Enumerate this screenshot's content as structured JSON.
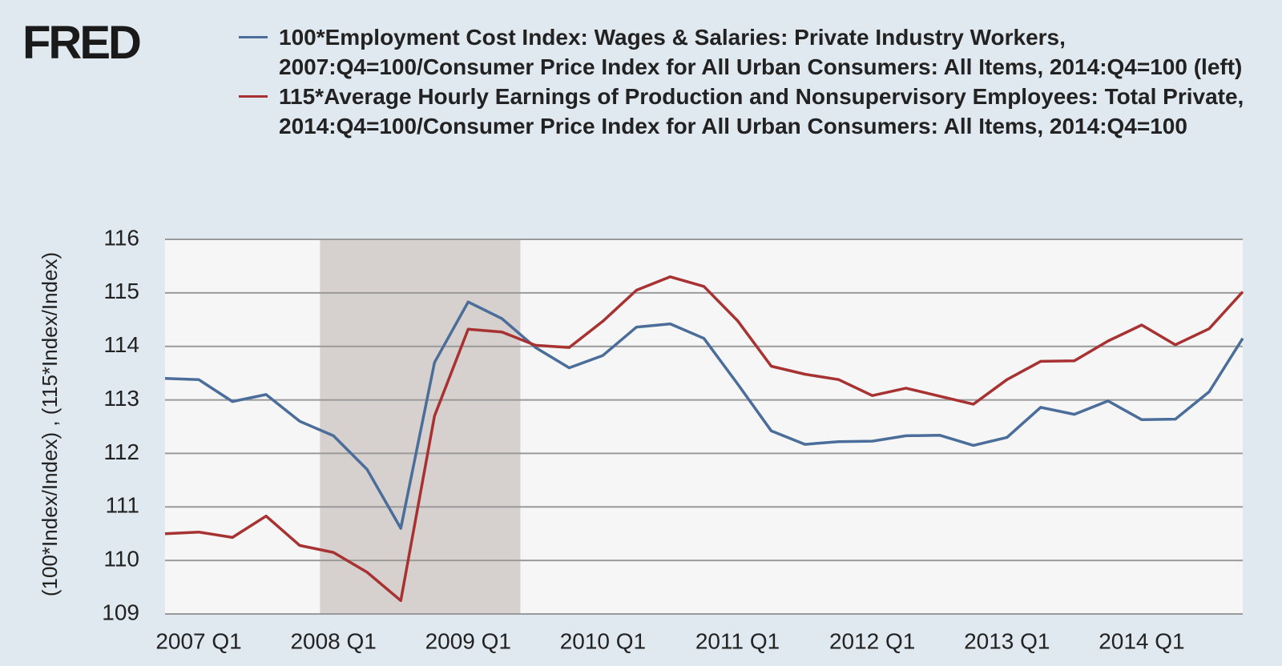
{
  "chart_data": {
    "type": "line",
    "logo": "FRED",
    "y_label": "(100*Index/Index) , (115*Index/Index)",
    "categories": [
      null,
      "2007 Q1",
      null,
      null,
      null,
      "2008 Q1",
      null,
      null,
      null,
      "2009 Q1",
      null,
      null,
      null,
      "2010 Q1",
      null,
      null,
      null,
      "2011 Q1",
      null,
      null,
      null,
      "2012 Q1",
      null,
      null,
      null,
      "2013 Q1",
      null,
      null,
      null,
      "2014 Q1",
      null,
      null,
      null
    ],
    "series": [
      {
        "name": "100*Employment Cost Index: Wages & Salaries: Private Industry Workers, 2007:Q4=100/Consumer Price Index for All Urban Consumers: All Items, 2014:Q4=100 (left)",
        "color": "#4a6d99",
        "values": [
          113.4,
          113.38,
          112.97,
          113.1,
          112.6,
          112.33,
          111.7,
          110.6,
          113.7,
          114.83,
          114.52,
          113.98,
          113.6,
          113.83,
          114.36,
          114.42,
          114.15,
          113.3,
          112.42,
          112.17,
          112.22,
          112.23,
          112.33,
          112.34,
          112.15,
          112.3,
          112.86,
          112.73,
          112.98,
          112.63,
          112.64,
          113.15,
          114.15
        ]
      },
      {
        "name": "115*Average Hourly Earnings of Production and Nonsupervisory Employees: Total Private, 2014:Q4=100/Consumer Price Index for All Urban Consumers: All Items, 2014:Q4=100",
        "color": "#a83232",
        "values": [
          110.5,
          110.53,
          110.43,
          110.83,
          110.28,
          110.15,
          109.78,
          109.25,
          112.7,
          114.32,
          114.27,
          114.02,
          113.98,
          114.47,
          115.05,
          115.3,
          115.12,
          114.48,
          113.63,
          113.48,
          113.38,
          113.08,
          113.22,
          113.07,
          112.92,
          113.38,
          113.72,
          113.73,
          114.1,
          114.4,
          114.03,
          114.33,
          115.02
        ]
      }
    ],
    "shading": {
      "x0": 4.6,
      "x1": 10.55,
      "color": "#d6d1cf"
    },
    "ylim": [
      109,
      116
    ],
    "yticks": [
      109,
      110,
      111,
      112,
      113,
      114,
      115,
      116
    ],
    "grid": true
  }
}
